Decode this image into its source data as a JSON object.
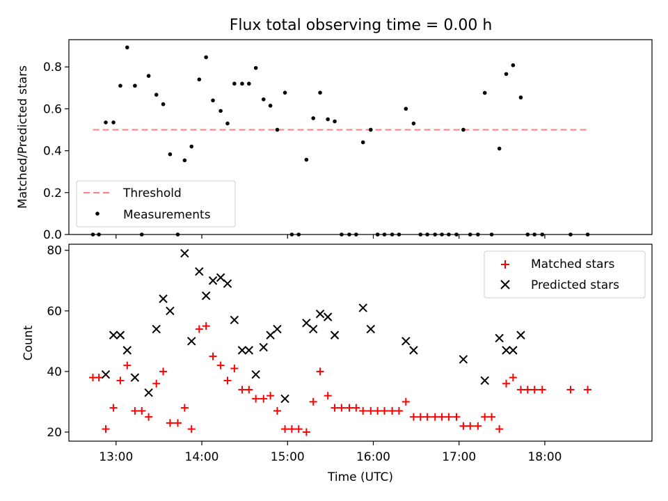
{
  "chart_data": [
    {
      "type": "scatter",
      "title": "Flux total observing time = 0.00 h",
      "ylabel": "Matched/Predicted stars",
      "xlabel": "",
      "ylim": [
        0,
        0.93
      ],
      "yticks": [
        "0.0",
        "0.2",
        "0.4",
        "0.6",
        "0.8"
      ],
      "ytick_values": [
        0,
        0.2,
        0.4,
        0.6,
        0.8
      ],
      "legend_position": "bottom-left",
      "legend": [
        {
          "name": "Threshold",
          "style": "dashed-line",
          "color": "#ff7f7f"
        },
        {
          "name": "Measurements",
          "style": "dot",
          "color": "#000000"
        }
      ],
      "threshold": {
        "name": "Threshold",
        "value": 0.5,
        "x_start": 12.73,
        "x_end": 18.5
      },
      "series": [
        {
          "name": "Measurements",
          "x": [
            12.73,
            12.8,
            12.88,
            12.97,
            13.05,
            13.13,
            13.22,
            13.3,
            13.38,
            13.47,
            13.55,
            13.63,
            13.72,
            13.8,
            13.88,
            13.97,
            14.05,
            14.13,
            14.22,
            14.3,
            14.38,
            14.47,
            14.55,
            14.63,
            14.72,
            14.8,
            14.88,
            14.97,
            15.05,
            15.13,
            15.22,
            15.3,
            15.38,
            15.47,
            15.55,
            15.63,
            15.72,
            15.8,
            15.88,
            15.97,
            16.05,
            16.13,
            16.22,
            16.3,
            16.38,
            16.47,
            16.55,
            16.63,
            16.72,
            16.8,
            16.88,
            16.97,
            17.05,
            17.13,
            17.22,
            17.3,
            17.38,
            17.47,
            17.55,
            17.63,
            17.72,
            17.8,
            17.88,
            17.97,
            18.3,
            18.5
          ],
          "y": [
            0,
            0,
            0.535,
            0.535,
            0.71,
            0.893,
            0.71,
            0,
            0.757,
            0.667,
            0.622,
            0.383,
            0,
            0.354,
            0.42,
            0.74,
            0.846,
            0.64,
            0.59,
            0.53,
            0.72,
            0.72,
            0.72,
            0.795,
            0.645,
            0.615,
            0.5,
            0.677,
            0,
            0,
            0.357,
            0.555,
            0.677,
            0.55,
            0.54,
            0,
            0,
            0,
            0.44,
            0.5,
            0,
            0,
            0,
            0,
            0.6,
            0.53,
            0,
            0,
            0,
            0,
            0,
            0,
            0.5,
            0,
            0,
            0.676,
            0,
            0.41,
            0.766,
            0.808,
            0.654,
            0,
            0,
            0,
            0,
            0
          ]
        }
      ]
    },
    {
      "type": "scatter",
      "title": "",
      "xlabel": "Time (UTC)",
      "ylabel": "Count",
      "ylim": [
        17,
        82
      ],
      "xlim": [
        12.45,
        19.25
      ],
      "yticks": [
        "20",
        "40",
        "60",
        "80"
      ],
      "ytick_values": [
        20,
        40,
        60,
        80
      ],
      "xticks": [
        "13:00",
        "14:00",
        "15:00",
        "16:00",
        "17:00",
        "18:00"
      ],
      "xtick_values": [
        13,
        14,
        15,
        16,
        17,
        18
      ],
      "legend_position": "top-right",
      "series": [
        {
          "name": "Matched stars",
          "marker": "plus",
          "color": "#ff0000",
          "x": [
            12.73,
            12.8,
            12.88,
            12.97,
            13.05,
            13.13,
            13.22,
            13.3,
            13.38,
            13.47,
            13.55,
            13.63,
            13.72,
            13.8,
            13.88,
            13.97,
            14.05,
            14.13,
            14.22,
            14.3,
            14.38,
            14.47,
            14.55,
            14.63,
            14.72,
            14.8,
            14.88,
            14.97,
            15.05,
            15.13,
            15.22,
            15.3,
            15.38,
            15.47,
            15.55,
            15.63,
            15.72,
            15.8,
            15.88,
            15.97,
            16.05,
            16.13,
            16.22,
            16.3,
            16.38,
            16.47,
            16.55,
            16.63,
            16.72,
            16.8,
            16.88,
            16.97,
            17.05,
            17.13,
            17.22,
            17.3,
            17.38,
            17.47,
            17.55,
            17.63,
            17.72,
            17.8,
            17.88,
            17.97,
            18.3,
            18.5
          ],
          "y": [
            38,
            38,
            21,
            28,
            37,
            42,
            27,
            27,
            25,
            36,
            40,
            23,
            23,
            28,
            21,
            54,
            55,
            45,
            42,
            37,
            41,
            34,
            34,
            31,
            31,
            32,
            27,
            21,
            21,
            21,
            20,
            30,
            40,
            32,
            28,
            28,
            28,
            28,
            27,
            27,
            27,
            27,
            27,
            27,
            30,
            25,
            25,
            25,
            25,
            25,
            25,
            25,
            22,
            22,
            22,
            25,
            25,
            21,
            36,
            38,
            34,
            34,
            34,
            34,
            34,
            34
          ]
        },
        {
          "name": "Predicted stars",
          "marker": "x",
          "color": "#000000",
          "x": [
            12.88,
            12.97,
            13.05,
            13.13,
            13.22,
            13.38,
            13.47,
            13.55,
            13.63,
            13.8,
            13.88,
            13.97,
            14.05,
            14.13,
            14.22,
            14.3,
            14.38,
            14.47,
            14.55,
            14.63,
            14.72,
            14.8,
            14.88,
            14.97,
            15.22,
            15.3,
            15.38,
            15.47,
            15.55,
            15.88,
            15.97,
            16.38,
            16.47,
            17.05,
            17.3,
            17.47,
            17.55,
            17.63,
            17.72
          ],
          "y": [
            39,
            52,
            52,
            47,
            38,
            33,
            54,
            64,
            60,
            79,
            50,
            73,
            65,
            70,
            71,
            69,
            57,
            47,
            47,
            39,
            48,
            52,
            54,
            31,
            56,
            54,
            59,
            58,
            52,
            61,
            54,
            50,
            47,
            44,
            37,
            51,
            47,
            47,
            52
          ]
        }
      ]
    }
  ]
}
